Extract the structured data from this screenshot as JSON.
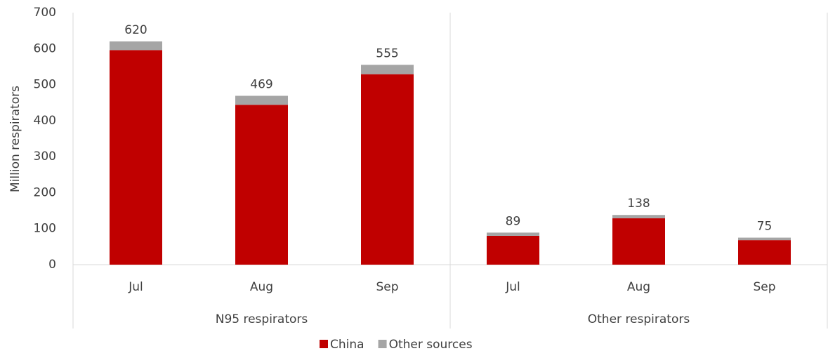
{
  "chart_data": {
    "type": "stacked_bar",
    "y_label": "Million respirators",
    "categories": [
      "Jul",
      "Aug",
      "Sep",
      "Jul",
      "Aug",
      "Sep"
    ],
    "group_labels": [
      "N95 respirators",
      "Other respirators"
    ],
    "series": [
      {
        "name": "China",
        "color": "#c00000",
        "values": [
          596,
          444,
          529,
          80,
          129,
          68
        ]
      },
      {
        "name": "Other sources",
        "color": "#a5a5a5",
        "values": [
          24,
          25,
          26,
          9,
          9,
          7
        ]
      }
    ],
    "totals": [
      620,
      469,
      555,
      89,
      138,
      75
    ],
    "ylim": [
      0,
      700
    ],
    "yticks": [
      0,
      100,
      200,
      300,
      400,
      500,
      600,
      700
    ],
    "grid": false,
    "legend": "bottom"
  }
}
